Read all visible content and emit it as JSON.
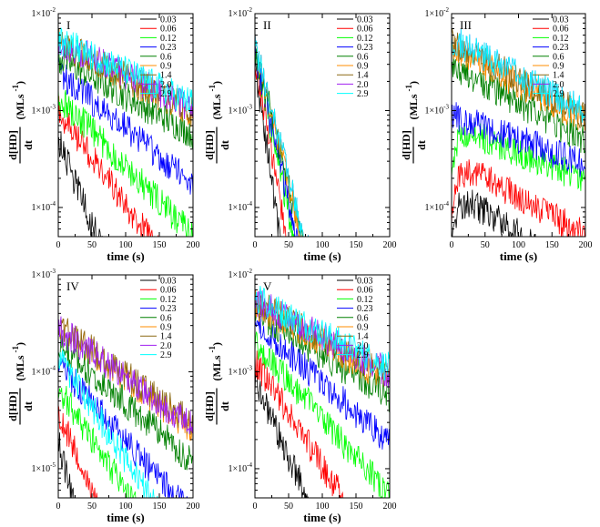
{
  "figure": {
    "colors": {
      "0.03": "#000000",
      "0.06": "#ff0000",
      "0.12": "#00ff00",
      "0.23": "#0000ff",
      "0.6": "#008000",
      "0.9": "#ff8c00",
      "1.4": "#8b6914",
      "2.0": "#a020f0",
      "2.9": "#00ffff"
    },
    "ylabel": {
      "numerator": "d[HD]",
      "denominator": "dt",
      "unit": "(MLs",
      "unit_exp": "-1",
      "unit_close": ")"
    },
    "xlabel": "time (s)"
  },
  "chart_data": [
    {
      "type": "line",
      "panel": "I",
      "xlim": [
        0,
        200
      ],
      "xticks": [
        0,
        50,
        100,
        150,
        200
      ],
      "ylog": true,
      "ylim": [
        5e-05,
        0.01
      ],
      "yticks": [
        {
          "base": "1×10",
          "exp": "-2"
        },
        {
          "base": "1×10",
          "exp": "-3"
        },
        {
          "base": "1×10",
          "exp": "-4"
        }
      ],
      "legend": [
        "0.03",
        "0.06",
        "0.12",
        "0.23",
        "0.6",
        "0.9",
        "1.4",
        "2.0",
        "2.9"
      ],
      "series": [
        {
          "name": "0.03",
          "start": 0.0005,
          "tau": 25
        },
        {
          "name": "0.06",
          "start": 0.001,
          "tau": 45
        },
        {
          "name": "0.12",
          "start": 0.0014,
          "tau": 60
        },
        {
          "name": "0.23",
          "start": 0.0025,
          "tau": 75
        },
        {
          "name": "0.6",
          "start": 0.0035,
          "tau": 110
        },
        {
          "name": "0.9",
          "start": 0.005,
          "tau": 120
        },
        {
          "name": "1.4",
          "start": 0.005,
          "tau": 125
        },
        {
          "name": "2.0",
          "start": 0.0052,
          "tau": 125
        },
        {
          "name": "2.9",
          "start": 0.0055,
          "tau": 130
        }
      ]
    },
    {
      "type": "line",
      "panel": "II",
      "xlim": [
        0,
        200
      ],
      "xticks": [
        0,
        50,
        100,
        150,
        200
      ],
      "ylog": true,
      "ylim": [
        5e-05,
        0.01
      ],
      "yticks": [
        {
          "base": "1×10",
          "exp": "-2"
        },
        {
          "base": "1×10",
          "exp": "-3"
        },
        {
          "base": "1×10",
          "exp": "-4"
        }
      ],
      "legend": [
        "0.03",
        "0.06",
        "0.12",
        "0.23",
        "0.6",
        "0.9",
        "1.4",
        "2.0",
        "2.9"
      ],
      "series": [
        {
          "name": "0.03",
          "start": 0.003,
          "tau": 9
        },
        {
          "name": "0.06",
          "start": 0.0035,
          "tau": 11
        },
        {
          "name": "0.12",
          "start": 0.004,
          "tau": 13
        },
        {
          "name": "0.23",
          "start": 0.004,
          "tau": 14
        },
        {
          "name": "0.6",
          "start": 0.0045,
          "tau": 15
        },
        {
          "name": "0.9",
          "start": 0.005,
          "tau": 15
        },
        {
          "name": "1.4",
          "start": 0.005,
          "tau": 16
        },
        {
          "name": "2.0",
          "start": 0.005,
          "tau": 16
        },
        {
          "name": "2.9",
          "start": 0.005,
          "tau": 16
        }
      ]
    },
    {
      "type": "line",
      "panel": "III",
      "xlim": [
        0,
        200
      ],
      "xticks": [
        0,
        50,
        100,
        150,
        200
      ],
      "ylog": true,
      "ylim": [
        5e-05,
        0.01
      ],
      "yticks": [
        {
          "base": "1×10",
          "exp": "-2"
        },
        {
          "base": "1×10",
          "exp": "-3"
        },
        {
          "base": "1×10",
          "exp": "-4"
        }
      ],
      "legend": [
        "0.03",
        "0.06",
        "0.12",
        "0.23",
        "0.6",
        "0.9",
        "1.4",
        "2.0",
        "2.9"
      ],
      "series": [
        {
          "name": "0.03",
          "start": 0.0001,
          "tau": 90,
          "rise": true
        },
        {
          "name": "0.06",
          "start": 0.0002,
          "tau": 110,
          "rise": true
        },
        {
          "name": "0.12",
          "start": 0.00045,
          "tau": 150,
          "rise": true
        },
        {
          "name": "0.23",
          "start": 0.0009,
          "tau": 170
        },
        {
          "name": "0.6",
          "start": 0.003,
          "tau": 110
        },
        {
          "name": "0.9",
          "start": 0.0045,
          "tau": 115
        },
        {
          "name": "1.4",
          "start": 0.005,
          "tau": 115
        },
        {
          "name": "2.0",
          "start": 0.0055,
          "tau": 115
        },
        {
          "name": "2.9",
          "start": 0.0055,
          "tau": 115
        }
      ]
    },
    {
      "type": "line",
      "panel": "IV",
      "xlim": [
        0,
        200
      ],
      "xticks": [
        0,
        50,
        100,
        150,
        200
      ],
      "ylog": true,
      "ylim": [
        5e-06,
        0.001
      ],
      "yticks": [
        {
          "base": "1×10",
          "exp": "-3"
        },
        {
          "base": "1×10",
          "exp": "-4"
        },
        {
          "base": "1×10",
          "exp": "-5"
        }
      ],
      "legend": [
        "0.03",
        "0.06",
        "0.12",
        "0.23",
        "0.6",
        "0.9",
        "1.4",
        "2.0",
        "2.9"
      ],
      "series": [
        {
          "name": "0.03",
          "start": 2e-05,
          "tau": 15
        },
        {
          "name": "0.06",
          "start": 4e-05,
          "tau": 25
        },
        {
          "name": "0.12",
          "start": 7e-05,
          "tau": 40
        },
        {
          "name": "0.23",
          "start": 0.00012,
          "tau": 55
        },
        {
          "name": "0.6",
          "start": 0.0002,
          "tau": 70
        },
        {
          "name": "0.9",
          "start": 0.0003,
          "tau": 80
        },
        {
          "name": "1.4",
          "start": 0.0003,
          "tau": 85
        },
        {
          "name": "2.0",
          "start": 0.00028,
          "tau": 85
        },
        {
          "name": "2.9",
          "start": 0.00015,
          "tau": 40
        }
      ]
    },
    {
      "type": "line",
      "panel": "V",
      "xlim": [
        0,
        200
      ],
      "xticks": [
        0,
        50,
        100,
        150,
        200
      ],
      "ylog": true,
      "ylim": [
        5e-05,
        0.01
      ],
      "yticks": [
        {
          "base": "1×10",
          "exp": "-2"
        },
        {
          "base": "1×10",
          "exp": "-3"
        },
        {
          "base": "1×10",
          "exp": "-4"
        }
      ],
      "legend": [
        "0.03",
        "0.06",
        "0.12",
        "0.23",
        "0.6",
        "0.9",
        "1.4",
        "2.0",
        "2.9"
      ],
      "series": [
        {
          "name": "0.03",
          "start": 0.0008,
          "tau": 28
        },
        {
          "name": "0.06",
          "start": 0.0013,
          "tau": 40
        },
        {
          "name": "0.12",
          "start": 0.002,
          "tau": 55
        },
        {
          "name": "0.23",
          "start": 0.0032,
          "tau": 70
        },
        {
          "name": "0.6",
          "start": 0.004,
          "tau": 100
        },
        {
          "name": "0.9",
          "start": 0.005,
          "tau": 110
        },
        {
          "name": "1.4",
          "start": 0.0052,
          "tau": 115
        },
        {
          "name": "2.0",
          "start": 0.0055,
          "tau": 115
        },
        {
          "name": "2.9",
          "start": 0.0058,
          "tau": 120
        }
      ]
    }
  ]
}
